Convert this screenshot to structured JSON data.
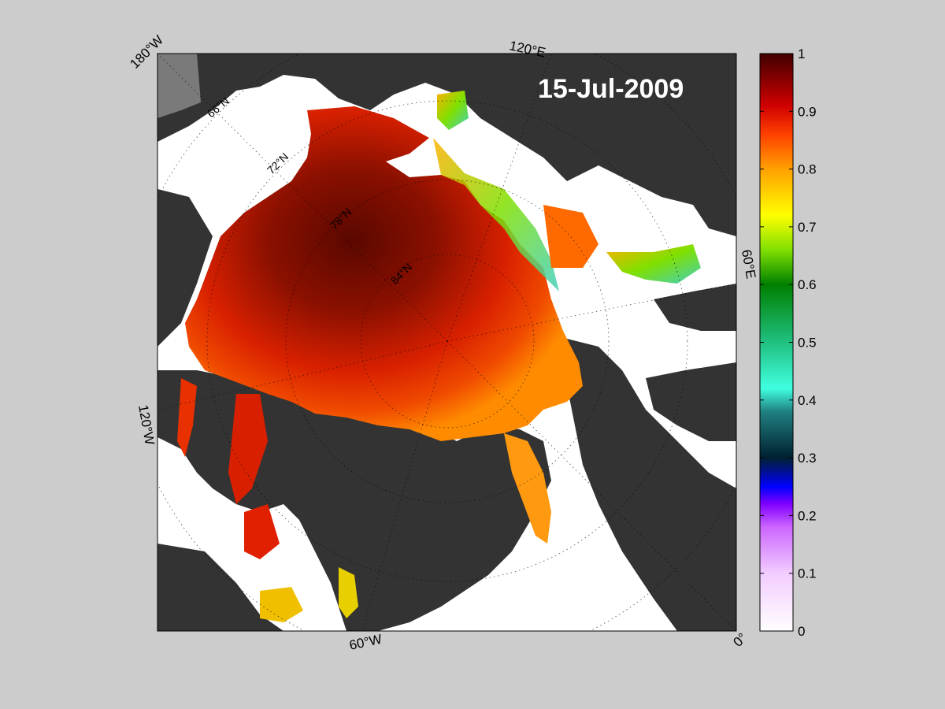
{
  "map": {
    "date_label": "15-Jul-2009",
    "longitude_labels": [
      "180°W",
      "120°E",
      "60°E",
      "0°",
      "60°W",
      "120°W"
    ],
    "latitude_labels": [
      "66°N",
      "72°N",
      "78°N",
      "84°N"
    ]
  },
  "colorbar": {
    "ticks": [
      "1",
      "0.9",
      "0.8",
      "0.7",
      "0.6",
      "0.5",
      "0.4",
      "0.3",
      "0.2",
      "0.1",
      "0"
    ],
    "colors": [
      "#ffffff",
      "#f2ccff",
      "#cc66ff",
      "#8000ff",
      "#0000ff",
      "#002030",
      "#208080",
      "#40ffe0",
      "#20c080",
      "#008000",
      "#80e000",
      "#ffff00",
      "#ffa000",
      "#ff4000",
      "#d00000",
      "#400000"
    ]
  },
  "colors": {
    "background": "#cccccc",
    "land": "#333333",
    "water": "#ffffff",
    "ice_high": "#6a0a00",
    "ice_mid": "#e02000",
    "ice_low": "#ff9000"
  }
}
